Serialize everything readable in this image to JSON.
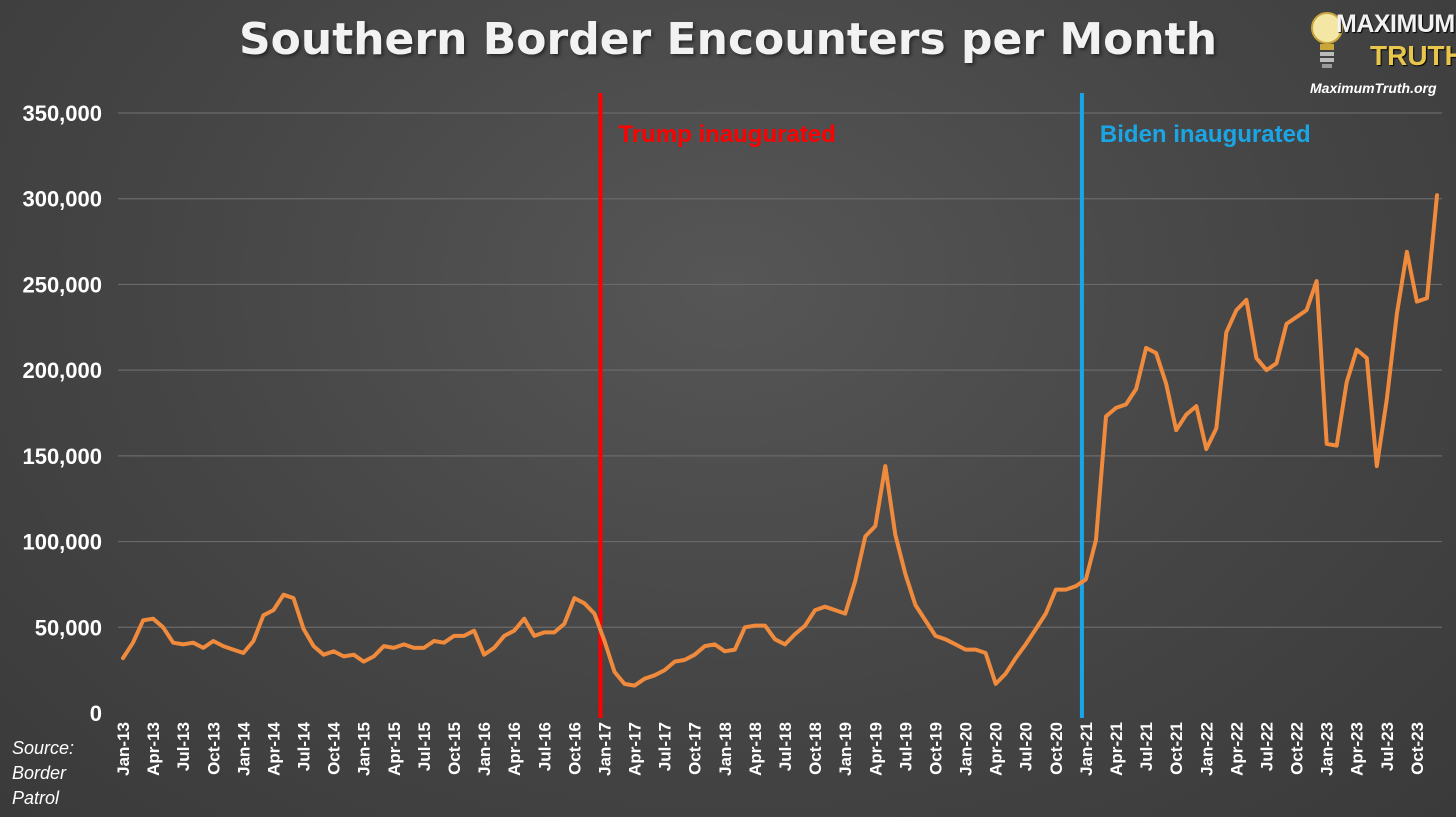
{
  "title": "Southern Border Encounters per Month",
  "source_lines": [
    "Source:",
    "Border",
    "Patrol"
  ],
  "logo": {
    "word1": "MAXIMUM",
    "word2": "TRUTH",
    "url": "MaximumTruth.org",
    "icon": "lightbulb-icon"
  },
  "colors": {
    "line": "#f08a3c",
    "trump": "#ff0000",
    "biden": "#1aa6e6",
    "grid": "#6a6a6a",
    "text": "#ffffff"
  },
  "chart_data": {
    "type": "line",
    "title": "Southern Border Encounters per Month",
    "xlabel": "",
    "ylabel": "",
    "ylim": [
      0,
      350000
    ],
    "yticks": [
      0,
      50000,
      100000,
      150000,
      200000,
      250000,
      300000,
      350000
    ],
    "ytick_labels": [
      "0",
      "50,000",
      "100,000",
      "150,000",
      "200,000",
      "250,000",
      "300,000",
      "350,000"
    ],
    "grid": true,
    "x_tick_labels": [
      "Jan-13",
      "Apr-13",
      "Jul-13",
      "Oct-13",
      "Jan-14",
      "Apr-14",
      "Jul-14",
      "Oct-14",
      "Jan-15",
      "Apr-15",
      "Jul-15",
      "Oct-15",
      "Jan-16",
      "Apr-16",
      "Jul-16",
      "Oct-16",
      "Jan-17",
      "Apr-17",
      "Jul-17",
      "Oct-17",
      "Jan-18",
      "Apr-18",
      "Jul-18",
      "Oct-18",
      "Jan-19",
      "Apr-19",
      "Jul-19",
      "Oct-19",
      "Jan-20",
      "Apr-20",
      "Jul-20",
      "Oct-20",
      "Jan-21",
      "Apr-21",
      "Jul-21",
      "Oct-21",
      "Jan-22",
      "Apr-22",
      "Jul-22",
      "Oct-22",
      "Jan-23",
      "Apr-23",
      "Jul-23",
      "Oct-23"
    ],
    "start_month": "Jan-13",
    "series": [
      {
        "values": [
          32000,
          41000,
          54000,
          55000,
          50000,
          41000,
          40000,
          41000,
          38000,
          42000,
          39000,
          37000,
          35000,
          42000,
          57000,
          60000,
          69000,
          67000,
          49000,
          39000,
          34000,
          36000,
          33000,
          34000,
          30000,
          33000,
          39000,
          38000,
          40000,
          38000,
          38000,
          42000,
          41000,
          45000,
          45000,
          48000,
          34000,
          38000,
          45000,
          48000,
          55000,
          45000,
          47000,
          47000,
          52000,
          67000,
          64000,
          58000,
          42000,
          24000,
          17000,
          16000,
          20000,
          22000,
          25000,
          30000,
          31000,
          34000,
          39000,
          40000,
          36000,
          37000,
          50000,
          51000,
          51000,
          43000,
          40000,
          46000,
          51000,
          60000,
          62000,
          60000,
          58000,
          77000,
          103000,
          109000,
          144000,
          104000,
          81000,
          63000,
          54000,
          45000,
          43000,
          40000,
          37000,
          37000,
          35000,
          17000,
          23000,
          32000,
          40000,
          49000,
          58000,
          72000,
          72000,
          74000,
          78000,
          101000,
          173000,
          178000,
          180000,
          189000,
          213000,
          210000,
          192000,
          165000,
          174000,
          179000,
          154000,
          166000,
          222000,
          235000,
          241000,
          207000,
          200000,
          204000,
          227000,
          231000,
          235000,
          252000,
          157000,
          156000,
          193000,
          212000,
          207000,
          144000,
          183000,
          233000,
          269000,
          240000,
          242000,
          302000
        ]
      }
    ],
    "annotations": [
      {
        "label": "Trump inaugurated",
        "month": "Jan-17",
        "color": "#ff0000"
      },
      {
        "label": "Biden inaugurated",
        "month": "Jan-21",
        "color": "#1aa6e6"
      }
    ]
  }
}
